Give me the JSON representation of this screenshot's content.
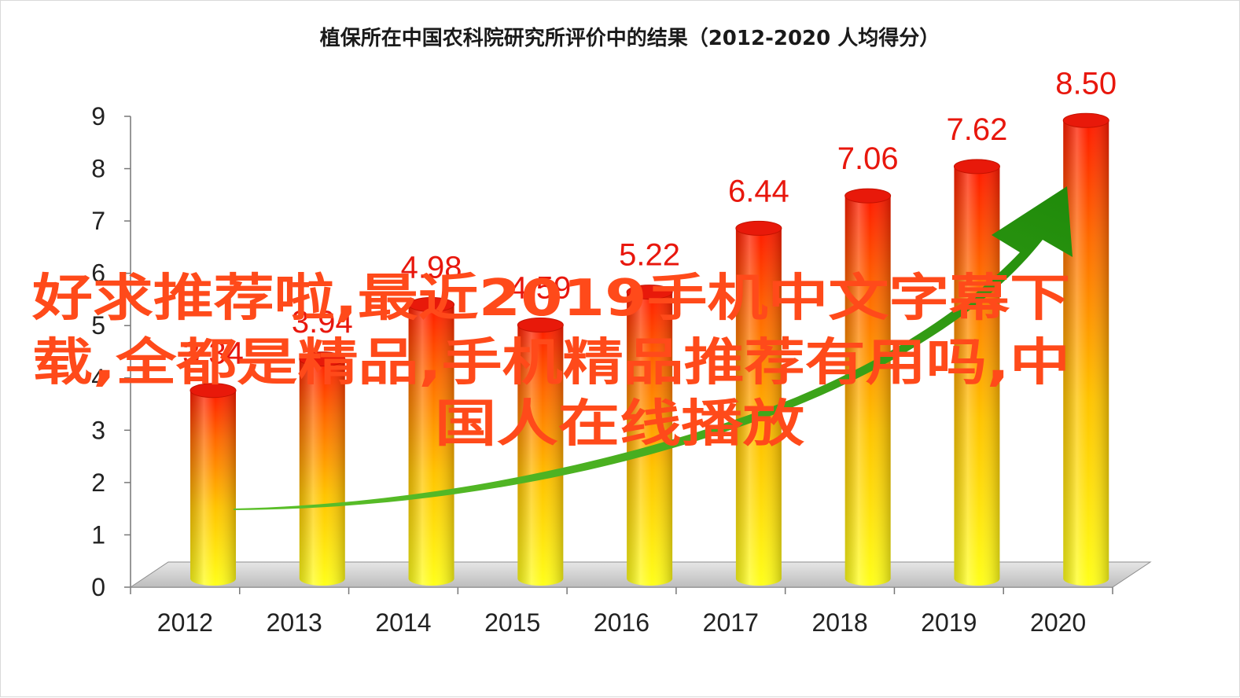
{
  "chart_data": {
    "type": "bar",
    "title": "植保所在中国农科院研究所评价中的结果（2012-2020  人均得分）",
    "categories": [
      "2012",
      "2013",
      "2014",
      "2015",
      "2016",
      "2017",
      "2018",
      "2019",
      "2020"
    ],
    "series": [
      {
        "values": [
          3.34,
          3.94,
          4.98,
          4.59,
          5.22,
          6.44,
          7.06,
          7.62,
          8.5
        ],
        "value_labels": [
          "3.34",
          "3.94",
          "4.98",
          "4.59",
          "5.22",
          "6.44",
          "7.06",
          "7.62",
          "8.50"
        ]
      }
    ],
    "ylim": [
      0,
      9
    ],
    "yticks": [
      "0",
      "1",
      "2",
      "3",
      "4",
      "5",
      "6",
      "7",
      "8",
      "9"
    ],
    "xlabel": "",
    "ylabel": "",
    "grid": false,
    "legend": "none",
    "style": "3d-cylinder",
    "trend_arrow": "green, rising",
    "colors": {
      "bar_top": "#ff1a00",
      "bar_bottom": "#ffff00",
      "value_label": "#e8170d",
      "arrow": "#2e9a12"
    }
  },
  "overlay": {
    "lines": [
      "好求推荐啦,最近2019手机中文字幕下",
      "载,全都是精品,手机精品推荐有用吗,中",
      "国人在线播放"
    ],
    "color": "#ff4a1a"
  }
}
